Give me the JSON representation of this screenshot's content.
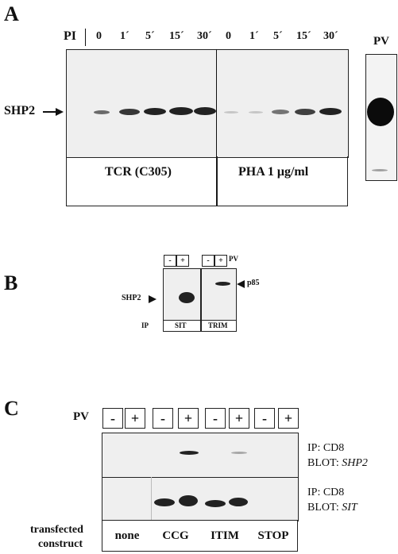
{
  "panelA": {
    "letter": "A",
    "pi_label": "PI",
    "timepoints_tcr": [
      "0",
      "1´",
      "5´",
      "15´",
      "30´"
    ],
    "timepoints_pha": [
      "0",
      "1´",
      "5´",
      "15´",
      "30´"
    ],
    "band_label": "SHP2",
    "stim_tcr": "TCR (C305)",
    "stim_pha": "PHA 1 μg/ml",
    "pv_label": "PV"
  },
  "panelB": {
    "letter": "B",
    "signs": [
      "-",
      "+",
      "-",
      "+"
    ],
    "pv_label": "PV",
    "left_band_label": "SHP2",
    "right_band_label": "p85",
    "ip_label": "IP",
    "ip_sit": "SIT",
    "ip_trim": "TRIM"
  },
  "panelC": {
    "letter": "C",
    "pv_label": "PV",
    "signs": [
      "-",
      "+",
      "-",
      "+",
      "-",
      "+",
      "-",
      "+"
    ],
    "top_ip": "IP: CD8",
    "top_blot_prefix": "BLOT: ",
    "top_blot_target": "SHP2",
    "bottom_ip": "IP: CD8",
    "bottom_blot_prefix": "BLOT: ",
    "bottom_blot_target": "SIT",
    "construct_label_1": "transfected",
    "construct_label_2": "construct",
    "constructs": [
      "none",
      "CCG",
      "ITIM",
      "STOP"
    ]
  }
}
